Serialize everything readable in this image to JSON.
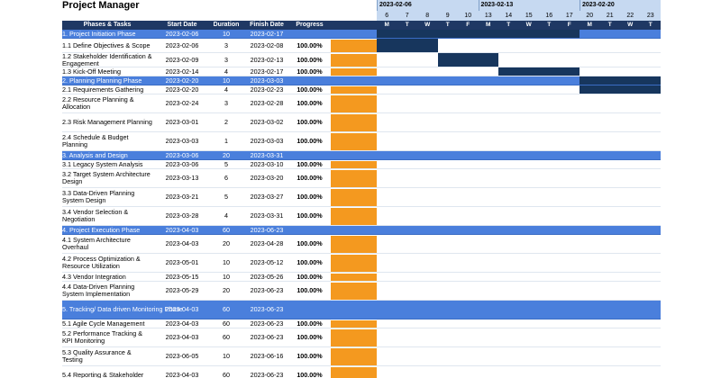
{
  "title": "Project Manager",
  "columns": {
    "task": "Phases & Tasks",
    "start": "Start Date",
    "duration": "Duration",
    "finish": "Finish Date",
    "progress": "Progress"
  },
  "weeks": [
    {
      "label": "2023-02-06",
      "start_day": 0
    },
    {
      "label": "2023-02-13",
      "start_day": 5
    },
    {
      "label": "2023-02-20",
      "start_day": 10
    }
  ],
  "day_numbers": [
    "6",
    "7",
    "8",
    "9",
    "10",
    "13",
    "14",
    "15",
    "16",
    "17",
    "20",
    "21",
    "22",
    "23"
  ],
  "day_letters": [
    "M",
    "T",
    "W",
    "T",
    "F",
    "M",
    "T",
    "W",
    "T",
    "F",
    "M",
    "T",
    "W",
    "T"
  ],
  "rows": [
    {
      "type": "phase",
      "task": "1. Project Initiation Phase",
      "start": "2023-02-06",
      "duration": "10",
      "finish": "2023-02-17",
      "progress": "",
      "gantt_start": 0,
      "gantt_days": 10
    },
    {
      "type": "task",
      "task": "1.1 Define Objectives & Scope",
      "start": "2023-02-06",
      "duration": "3",
      "finish": "2023-02-08",
      "progress": "100.00%",
      "fill": 1.0,
      "gantt_start": 0,
      "gantt_days": 3
    },
    {
      "type": "task",
      "task": "1.2 Stakeholder Identification & Engagement",
      "start": "2023-02-09",
      "duration": "3",
      "finish": "2023-02-13",
      "progress": "100.00%",
      "fill": 1.0,
      "gantt_start": 3,
      "gantt_days": 3
    },
    {
      "type": "task",
      "task": "1.3 Kick-Off Meeting",
      "start": "2023-02-14",
      "duration": "4",
      "finish": "2023-02-17",
      "progress": "100.00%",
      "fill": 1.0,
      "gantt_start": 6,
      "gantt_days": 4
    },
    {
      "type": "phase",
      "task": "2. Planning Planning Phase",
      "start": "2023-02-20",
      "duration": "10",
      "finish": "2023-03-03",
      "progress": "",
      "gantt_start": 10,
      "gantt_days": 4
    },
    {
      "type": "task",
      "task": "2.1 Requirements Gathering",
      "start": "2023-02-20",
      "duration": "4",
      "finish": "2023-02-23",
      "progress": "100.00%",
      "fill": 1.0,
      "gantt_start": 10,
      "gantt_days": 4
    },
    {
      "type": "task",
      "task": "2.2 Resource Planning & Allocation",
      "start": "2023-02-24",
      "duration": "3",
      "finish": "2023-02-28",
      "progress": "100.00%",
      "fill": 1.0,
      "gantt_start": null,
      "gantt_days": 0
    },
    {
      "type": "task",
      "task": "2.3 Risk Management Planning",
      "start": "2023-03-01",
      "duration": "2",
      "finish": "2023-03-02",
      "progress": "100.00%",
      "fill": 1.0,
      "gantt_start": null,
      "gantt_days": 0
    },
    {
      "type": "task",
      "task": "2.4 Schedule & Budget Planning",
      "start": "2023-03-03",
      "duration": "1",
      "finish": "2023-03-03",
      "progress": "100.00%",
      "fill": 1.0,
      "gantt_start": null,
      "gantt_days": 0
    },
    {
      "type": "phase",
      "task": "3. Analysis and Design",
      "start": "2023-03-06",
      "duration": "20",
      "finish": "2023-03-31",
      "progress": "",
      "gantt_start": null,
      "gantt_days": 0
    },
    {
      "type": "task",
      "task": "3.1 Legacy System Analysis",
      "start": "2023-03-06",
      "duration": "5",
      "finish": "2023-03-10",
      "progress": "100.00%",
      "fill": 1.0,
      "gantt_start": null,
      "gantt_days": 0
    },
    {
      "type": "task",
      "task": "3.2 Target System Architecture Design",
      "start": "2023-03-13",
      "duration": "6",
      "finish": "2023-03-20",
      "progress": "100.00%",
      "fill": 1.0,
      "gantt_start": null,
      "gantt_days": 0
    },
    {
      "type": "task",
      "task": "3.3 Data-Driven Planning System Design",
      "start": "2023-03-21",
      "duration": "5",
      "finish": "2023-03-27",
      "progress": "100.00%",
      "fill": 1.0,
      "gantt_start": null,
      "gantt_days": 0
    },
    {
      "type": "task",
      "task": "3.4 Vendor Selection & Negotiation",
      "start": "2023-03-28",
      "duration": "4",
      "finish": "2023-03-31",
      "progress": "100.00%",
      "fill": 1.0,
      "gantt_start": null,
      "gantt_days": 0
    },
    {
      "type": "phase",
      "task": "4. Project Execution Phase",
      "start": "2023-04-03",
      "duration": "60",
      "finish": "2023-06-23",
      "progress": "",
      "gantt_start": null,
      "gantt_days": 0
    },
    {
      "type": "task",
      "task": "4.1 System Architecture Overhaul",
      "start": "2023-04-03",
      "duration": "20",
      "finish": "2023-04-28",
      "progress": "100.00%",
      "fill": 1.0,
      "gantt_start": null,
      "gantt_days": 0
    },
    {
      "type": "task",
      "task": "4.2 Process Optimization & Resource Utilization",
      "start": "2023-05-01",
      "duration": "10",
      "finish": "2023-05-12",
      "progress": "100.00%",
      "fill": 1.0,
      "gantt_start": null,
      "gantt_days": 0
    },
    {
      "type": "task",
      "task": "4.3 Vendor Integration",
      "start": "2023-05-15",
      "duration": "10",
      "finish": "2023-05-26",
      "progress": "100.00%",
      "fill": 1.0,
      "gantt_start": null,
      "gantt_days": 0
    },
    {
      "type": "task",
      "task": "4.4 Data-Driven Planning System Implementation",
      "start": "2023-05-29",
      "duration": "20",
      "finish": "2023-06-23",
      "progress": "100.00%",
      "fill": 1.0,
      "gantt_start": null,
      "gantt_days": 0
    },
    {
      "type": "phase",
      "task": "5. Tracking/ Data driven Monitoring Phase",
      "start": "2023-04-03",
      "duration": "60",
      "finish": "2023-06-23",
      "progress": "",
      "gantt_start": null,
      "gantt_days": 0
    },
    {
      "type": "task",
      "task": "5.1 Agile Cycle Management",
      "start": "2023-04-03",
      "duration": "60",
      "finish": "2023-06-23",
      "progress": "100.00%",
      "fill": 1.0,
      "gantt_start": null,
      "gantt_days": 0
    },
    {
      "type": "task",
      "task": "5.2 Performance Tracking & KPI Monitoring",
      "start": "2023-04-03",
      "duration": "60",
      "finish": "2023-06-23",
      "progress": "100.00%",
      "fill": 1.0,
      "gantt_start": null,
      "gantt_days": 0
    },
    {
      "type": "task",
      "task": "5.3 Quality Assurance & Testing",
      "start": "2023-06-05",
      "duration": "10",
      "finish": "2023-06-16",
      "progress": "100.00%",
      "fill": 1.0,
      "gantt_start": null,
      "gantt_days": 0
    },
    {
      "type": "task",
      "task": "5.4 Reporting & Stakeholder",
      "start": "2023-04-03",
      "duration": "60",
      "finish": "2023-06-23",
      "progress": "100.00%",
      "fill": 1.0,
      "gantt_start": null,
      "gantt_days": 0
    }
  ],
  "colors": {
    "header_dark": "#1f3864",
    "phase_blue": "#4a7fdc",
    "week_light": "#c6d9f1",
    "gantt_bar": "#17365d",
    "progress_orange": "#f4991f"
  }
}
